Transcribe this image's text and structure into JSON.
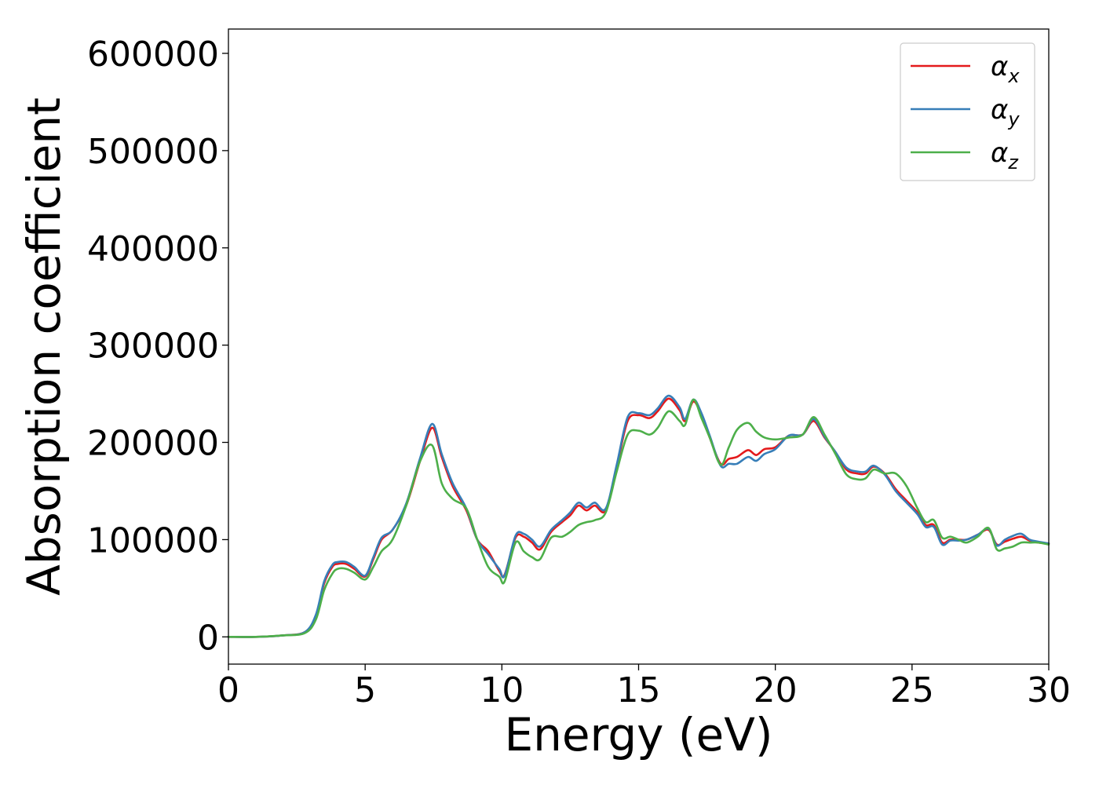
{
  "chart_data": {
    "type": "line",
    "title": "",
    "xlabel": "Energy (eV)",
    "ylabel": "Absorption coefficient",
    "xlim": [
      0,
      30
    ],
    "ylim": [
      -28000,
      625000
    ],
    "xticks": [
      0,
      5,
      10,
      15,
      20,
      25,
      30
    ],
    "yticks": [
      0,
      100000,
      200000,
      300000,
      400000,
      500000,
      600000
    ],
    "grid": false,
    "legend_position": "top-right",
    "series": [
      {
        "name": "α_x",
        "legend_symbol": "α",
        "legend_subscript": "x",
        "color": "#e41a1c",
        "x": [
          0,
          1,
          2,
          2.8,
          3.2,
          3.5,
          3.8,
          4.0,
          4.3,
          4.6,
          5.0,
          5.3,
          5.6,
          6.0,
          6.5,
          7.0,
          7.45,
          7.8,
          8.2,
          8.7,
          9.1,
          9.5,
          9.9,
          10.1,
          10.5,
          10.8,
          11.1,
          11.4,
          11.8,
          12.2,
          12.5,
          12.8,
          13.1,
          13.4,
          13.8,
          14.2,
          14.6,
          15.0,
          15.4,
          15.7,
          16.1,
          16.5,
          16.7,
          17.0,
          17.3,
          17.6,
          18.0,
          18.3,
          18.6,
          19.0,
          19.3,
          19.6,
          20.0,
          20.5,
          21.0,
          21.4,
          21.8,
          22.2,
          22.6,
          23.0,
          23.3,
          23.6,
          24.0,
          24.4,
          24.8,
          25.2,
          25.5,
          25.8,
          26.1,
          26.4,
          26.7,
          27.0,
          27.4,
          27.8,
          28.1,
          28.4,
          28.7,
          29.0,
          29.3,
          29.6,
          30.0
        ],
        "y": [
          0,
          0,
          1500,
          5000,
          22000,
          55000,
          72000,
          75000,
          75000,
          70000,
          62000,
          80000,
          100000,
          110000,
          135000,
          180000,
          215000,
          185000,
          155000,
          130000,
          100000,
          88000,
          68000,
          64000,
          102000,
          103000,
          97000,
          90000,
          108000,
          118000,
          125000,
          135000,
          130000,
          135000,
          130000,
          175000,
          222000,
          228000,
          225000,
          232000,
          245000,
          233000,
          222000,
          242000,
          228000,
          205000,
          178000,
          183000,
          185000,
          192000,
          187000,
          193000,
          195000,
          207000,
          208000,
          222000,
          205000,
          190000,
          172000,
          168000,
          168000,
          175000,
          168000,
          152000,
          140000,
          128000,
          115000,
          115000,
          97000,
          100000,
          100000,
          100000,
          105000,
          110000,
          95000,
          98000,
          101000,
          103000,
          99000,
          97000,
          96000
        ]
      },
      {
        "name": "α_y",
        "legend_symbol": "α",
        "legend_subscript": "y",
        "color": "#377eb8",
        "x": [
          0,
          1,
          2,
          2.8,
          3.2,
          3.5,
          3.8,
          4.0,
          4.3,
          4.6,
          5.0,
          5.3,
          5.6,
          6.0,
          6.5,
          7.0,
          7.45,
          7.8,
          8.2,
          8.7,
          9.1,
          9.5,
          9.9,
          10.1,
          10.5,
          10.8,
          11.1,
          11.4,
          11.8,
          12.2,
          12.5,
          12.8,
          13.1,
          13.4,
          13.8,
          14.2,
          14.6,
          15.0,
          15.4,
          15.7,
          16.1,
          16.5,
          16.7,
          17.0,
          17.3,
          17.6,
          18.0,
          18.3,
          18.6,
          19.0,
          19.3,
          19.6,
          20.0,
          20.5,
          21.0,
          21.4,
          21.8,
          22.2,
          22.6,
          23.0,
          23.3,
          23.6,
          24.0,
          24.4,
          24.8,
          25.2,
          25.5,
          25.8,
          26.1,
          26.4,
          26.7,
          27.0,
          27.4,
          27.8,
          28.1,
          28.4,
          28.7,
          29.0,
          29.3,
          29.6,
          30.0
        ],
        "y": [
          0,
          0,
          1500,
          5000,
          23000,
          57000,
          74000,
          77000,
          77000,
          72000,
          63000,
          82000,
          102000,
          110000,
          137000,
          183000,
          219000,
          188000,
          158000,
          132000,
          100000,
          85000,
          70000,
          63000,
          104000,
          106000,
          100000,
          93000,
          110000,
          120000,
          128000,
          138000,
          133000,
          138000,
          132000,
          177000,
          226000,
          230000,
          228000,
          235000,
          248000,
          236000,
          224000,
          244000,
          230000,
          207000,
          176000,
          178000,
          178000,
          185000,
          181000,
          188000,
          193000,
          207000,
          208000,
          224000,
          206000,
          190000,
          174000,
          170000,
          170000,
          176000,
          167000,
          150000,
          138000,
          126000,
          113000,
          113000,
          95000,
          99000,
          99000,
          100000,
          105000,
          111000,
          94000,
          100000,
          104000,
          106000,
          100000,
          98000,
          96000
        ]
      },
      {
        "name": "α_z",
        "legend_symbol": "α",
        "legend_subscript": "z",
        "color": "#4daf4a",
        "x": [
          0,
          1,
          2,
          2.8,
          3.2,
          3.5,
          3.8,
          4.0,
          4.3,
          4.6,
          5.0,
          5.3,
          5.6,
          6.0,
          6.5,
          7.0,
          7.45,
          7.8,
          8.2,
          8.7,
          9.1,
          9.5,
          9.9,
          10.1,
          10.5,
          10.8,
          11.1,
          11.4,
          11.8,
          12.2,
          12.5,
          12.8,
          13.1,
          13.4,
          13.8,
          14.2,
          14.6,
          15.0,
          15.4,
          15.7,
          16.1,
          16.5,
          16.7,
          17.0,
          17.3,
          17.6,
          18.0,
          18.3,
          18.6,
          19.0,
          19.3,
          19.6,
          20.0,
          20.5,
          21.0,
          21.4,
          21.8,
          22.2,
          22.6,
          23.0,
          23.3,
          23.6,
          24.0,
          24.4,
          24.8,
          25.2,
          25.5,
          25.8,
          26.1,
          26.4,
          26.7,
          27.0,
          27.4,
          27.8,
          28.1,
          28.4,
          28.7,
          29.0,
          29.3,
          29.6,
          30.0
        ],
        "y": [
          0,
          0,
          1500,
          4000,
          18000,
          48000,
          65000,
          70000,
          70000,
          66000,
          59000,
          72000,
          88000,
          100000,
          135000,
          180000,
          197000,
          158000,
          142000,
          132000,
          100000,
          72000,
          62000,
          57000,
          97000,
          88000,
          82000,
          80000,
          102000,
          103000,
          108000,
          115000,
          118000,
          120000,
          128000,
          170000,
          208000,
          212000,
          208000,
          215000,
          232000,
          222000,
          218000,
          244000,
          225000,
          205000,
          177000,
          195000,
          213000,
          220000,
          211000,
          205000,
          203000,
          205000,
          208000,
          226000,
          208000,
          188000,
          167000,
          162000,
          163000,
          172000,
          168000,
          168000,
          155000,
          132000,
          118000,
          120000,
          102000,
          103000,
          100000,
          97000,
          103000,
          112000,
          90000,
          91000,
          93000,
          97000,
          97000,
          97000,
          95000
        ]
      }
    ]
  }
}
